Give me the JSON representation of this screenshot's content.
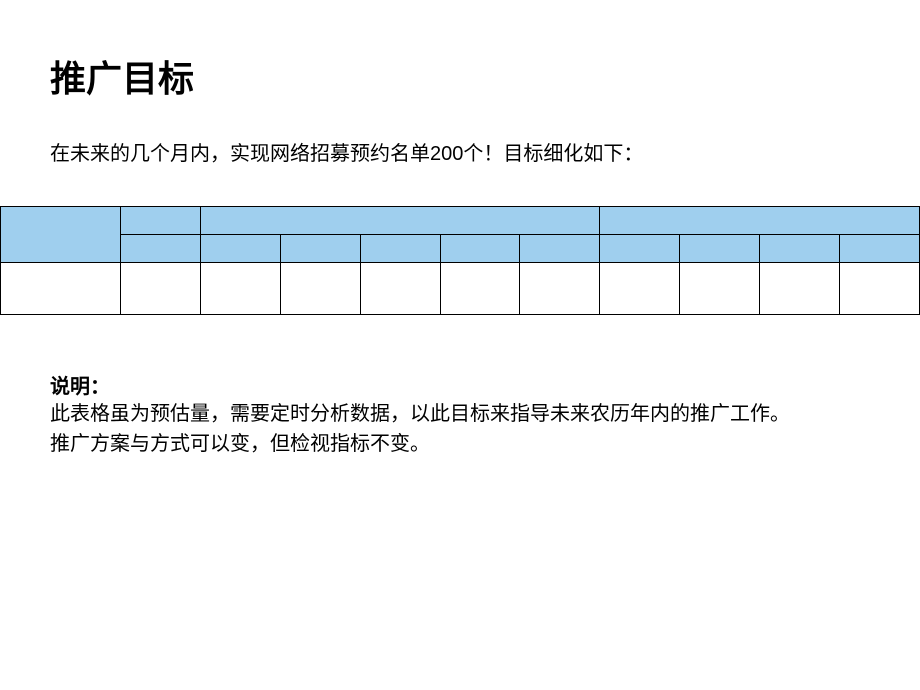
{
  "title": "推广目标",
  "subtitle": "在未来的几个月内，实现网络招募预约名单200个！目标细化如下：",
  "table": {
    "header_bg_color": "#9fcfee",
    "data_bg_color": "#ffffff",
    "border_color": "#000000",
    "colspans_row1": [
      1,
      1,
      5,
      4
    ],
    "columns_row2": 11,
    "columns_row3": 11,
    "first_col_rowspan": 2
  },
  "note": {
    "label": "说明：",
    "line1": "此表格虽为预估量，需要定时分析数据，以此目标来指导未来农历年内的推广工作。",
    "line2": "推广方案与方式可以变，但检视指标不变。"
  },
  "styling": {
    "title_fontsize": 36,
    "subtitle_fontsize": 20,
    "note_fontsize": 20,
    "background_color": "#ffffff",
    "text_color": "#000000"
  }
}
